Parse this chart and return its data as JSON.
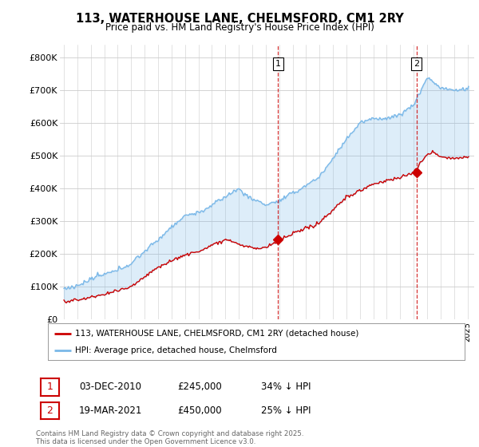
{
  "title": "113, WATERHOUSE LANE, CHELMSFORD, CM1 2RY",
  "subtitle": "Price paid vs. HM Land Registry's House Price Index (HPI)",
  "hpi_color": "#7ab8e8",
  "price_color": "#cc0000",
  "fill_color": "#ddeeff",
  "transaction1_x": 2010.92,
  "transaction1_y": 245000,
  "transaction2_x": 2021.21,
  "transaction2_y": 450000,
  "vline_color": "#cc0000",
  "legend_price_label": "113, WATERHOUSE LANE, CHELMSFORD, CM1 2RY (detached house)",
  "legend_hpi_label": "HPI: Average price, detached house, Chelmsford",
  "table_row1": [
    "1",
    "03-DEC-2010",
    "£245,000",
    "34% ↓ HPI"
  ],
  "table_row2": [
    "2",
    "19-MAR-2021",
    "£450,000",
    "25% ↓ HPI"
  ],
  "footer": "Contains HM Land Registry data © Crown copyright and database right 2025.\nThis data is licensed under the Open Government Licence v3.0.",
  "background_color": "#ffffff",
  "grid_color": "#cccccc",
  "y_ticks": [
    0,
    100000,
    200000,
    300000,
    400000,
    500000,
    600000,
    700000,
    800000
  ],
  "y_tick_labels": [
    "£0",
    "£100K",
    "£200K",
    "£300K",
    "£400K",
    "£500K",
    "£600K",
    "£700K",
    "£800K"
  ],
  "ylim": [
    0,
    840000
  ],
  "xlim": [
    1994.7,
    2025.5
  ]
}
